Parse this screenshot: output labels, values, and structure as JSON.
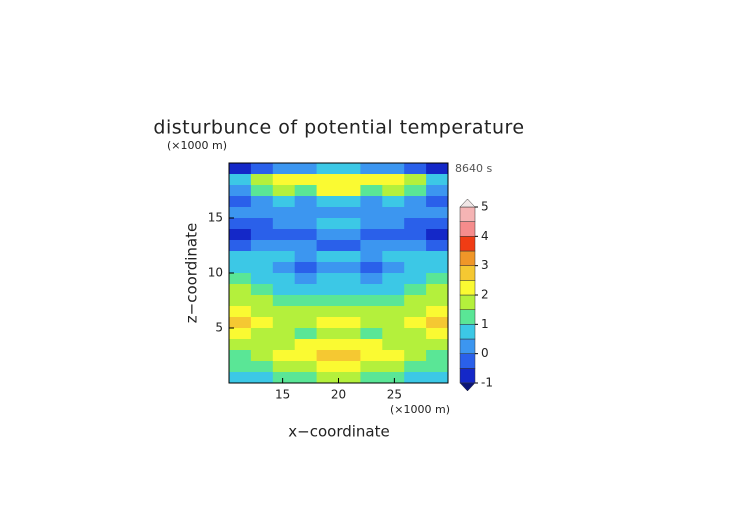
{
  "chart_data": {
    "type": "contour",
    "title": "disturbunce of potential temperature",
    "time_label": "8640 s",
    "x_label": "x−coordinate",
    "y_label": "z−coordinate",
    "x_unit": "(×1000 m)",
    "y_unit": "(×1000 m)",
    "xlim": [
      10.2,
      29.8
    ],
    "ylim": [
      0,
      20
    ],
    "xticks": [
      15,
      20,
      25
    ],
    "yticks": [
      5,
      10,
      15
    ],
    "x": [
      11.18,
      13.14,
      15.1,
      17.06,
      19.02,
      20.98,
      22.94,
      24.9,
      26.86,
      28.82
    ],
    "y": [
      19.5,
      18.5,
      17.5,
      16.5,
      15.5,
      14.5,
      13.5,
      12.5,
      11.5,
      10.5,
      9.5,
      8.5,
      7.5,
      6.5,
      5.5,
      4.5,
      3.5,
      2.5,
      1.5,
      0.5
    ],
    "z": [
      [
        -0.8,
        -0.3,
        0,
        0.3,
        0.5,
        0.5,
        0.3,
        0,
        -0.3,
        -0.8
      ],
      [
        0.5,
        1.5,
        2,
        2,
        2.3,
        2.3,
        2,
        2,
        1.5,
        0.5
      ],
      [
        0.3,
        1,
        1.5,
        1.3,
        2,
        2,
        1.3,
        1.5,
        1,
        0.3
      ],
      [
        -0.3,
        0.3,
        0.5,
        0.3,
        0.8,
        0.8,
        0.3,
        0.5,
        0.3,
        -0.3
      ],
      [
        0,
        0.2,
        0.3,
        0,
        0.3,
        0.3,
        0,
        0.3,
        0.2,
        0
      ],
      [
        -0.3,
        -0.2,
        0,
        0.3,
        0.8,
        0.8,
        0.3,
        0,
        -0.2,
        -0.3
      ],
      [
        -0.7,
        -0.5,
        -0.3,
        -0.3,
        0,
        0,
        -0.3,
        -0.3,
        -0.5,
        -0.7
      ],
      [
        -0.3,
        0,
        0.2,
        0,
        -0.2,
        -0.2,
        0,
        0.2,
        0,
        -0.3
      ],
      [
        0.5,
        0.8,
        0.6,
        0.4,
        0.5,
        0.5,
        0.4,
        0.6,
        0.8,
        0.5
      ],
      [
        0.8,
        0.6,
        0.3,
        -0.2,
        0.2,
        0.2,
        -0.2,
        0.3,
        0.6,
        0.8
      ],
      [
        1,
        0.8,
        0.5,
        0.2,
        0.5,
        0.5,
        0.2,
        0.5,
        0.8,
        1
      ],
      [
        1.5,
        1.2,
        0.8,
        0.5,
        0.8,
        0.8,
        0.5,
        0.8,
        1.2,
        1.5
      ],
      [
        1.8,
        1.5,
        1.2,
        1.2,
        1.2,
        1.2,
        1.2,
        1.2,
        1.5,
        1.8
      ],
      [
        2.3,
        1.8,
        1.6,
        1.6,
        1.8,
        1.8,
        1.6,
        1.6,
        1.8,
        2.3
      ],
      [
        2.6,
        2,
        1.8,
        1.5,
        2.2,
        2.2,
        1.5,
        1.8,
        2,
        2.6
      ],
      [
        2.2,
        1.8,
        1.5,
        1.2,
        1.8,
        1.8,
        1.2,
        1.5,
        1.8,
        2.2
      ],
      [
        1.5,
        1.6,
        1.8,
        2,
        2.3,
        2.3,
        2,
        1.8,
        1.6,
        1.5
      ],
      [
        1.2,
        1.5,
        2,
        2.3,
        2.5,
        2.5,
        2.3,
        2,
        1.5,
        1.2
      ],
      [
        1,
        1.2,
        1.5,
        1.8,
        2,
        2,
        1.8,
        1.5,
        1.2,
        1
      ],
      [
        0.5,
        0.8,
        1,
        1.2,
        1.5,
        1.5,
        1.2,
        1,
        0.8,
        0.5
      ]
    ],
    "levels": [
      -1,
      -0.5,
      0,
      0.5,
      1,
      1.5,
      2,
      2.5,
      3,
      3.5,
      4,
      4.5,
      5
    ],
    "colors": [
      "#1428c8",
      "#2a60ea",
      "#3c96f0",
      "#3cc8e6",
      "#5ae696",
      "#b4f03c",
      "#fafa32",
      "#f5c832",
      "#f09628",
      "#f03c14",
      "#f58c8c",
      "#f5b4b4"
    ],
    "under_color": "#0a1478",
    "over_color": "#f0e6e6",
    "colorbar_ticks": [
      -1,
      0,
      1,
      2,
      3,
      4,
      5
    ]
  }
}
